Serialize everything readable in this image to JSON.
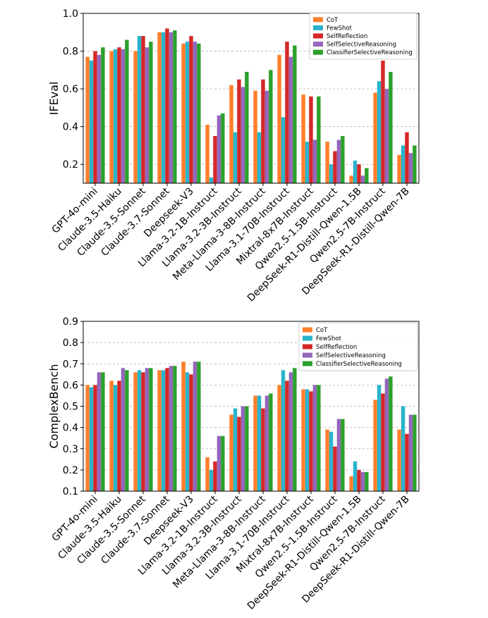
{
  "colors": {
    "CoT": "#ff7f2a",
    "FewShot": "#2ab4cc",
    "SelfReflection": "#d62728",
    "SelfSelectiveReasoning": "#9467bd",
    "ClassifierSelectiveReasoning": "#2ca02c"
  },
  "chart_data": [
    {
      "type": "bar",
      "title": "",
      "xlabel": "",
      "ylabel": "IFEval",
      "ylim": [
        0.1,
        1.0
      ],
      "yticks": [
        "0.2",
        "0.4",
        "0.6",
        "0.8",
        "1.0"
      ],
      "ytick_values": [
        0.2,
        0.4,
        0.6,
        0.8,
        1.0
      ],
      "grid": "horizontal dashed",
      "legend_position": "top-right",
      "categories": [
        "GPT-4o-mini",
        "Claude-3.5-Haiku",
        "Claude-3.5-Sonnet",
        "Claude-3.7-Sonnet",
        "Deepseek-V3",
        "Llama-3.2-1B-Instruct",
        "Llama-3.2-3B-Instruct",
        "Meta-Llama-3-8B-Instruct",
        "Llama-3.1-70B-Instruct",
        "Mixtral-8x7B-Instruct",
        "Qwen2.5-1.5B-Instruct",
        "DeepSeek-R1-Distill-Qwen-1.5B",
        "Qwen2.5-7B-Instruct",
        "DeepSeek-R1-Distill-Qwen-7B"
      ],
      "series": [
        {
          "name": "CoT",
          "values": [
            0.77,
            0.8,
            0.8,
            0.9,
            0.84,
            0.41,
            0.62,
            0.59,
            0.78,
            0.57,
            0.32,
            0.14,
            0.58,
            0.25
          ]
        },
        {
          "name": "FewShot",
          "values": [
            0.75,
            0.81,
            0.88,
            0.9,
            0.85,
            0.13,
            0.37,
            0.37,
            0.45,
            0.32,
            0.2,
            0.22,
            0.64,
            0.3
          ]
        },
        {
          "name": "SelfReflection",
          "values": [
            0.8,
            0.82,
            0.88,
            0.92,
            0.88,
            0.35,
            0.65,
            0.65,
            0.85,
            0.56,
            0.27,
            0.2,
            0.75,
            0.37
          ]
        },
        {
          "name": "SelfSelectiveReasoning",
          "values": [
            0.78,
            0.81,
            0.82,
            0.9,
            0.85,
            0.46,
            0.61,
            0.59,
            0.77,
            0.33,
            0.33,
            0.14,
            0.6,
            0.26
          ]
        },
        {
          "name": "ClassifierSelectiveReasoning",
          "values": [
            0.82,
            0.86,
            0.85,
            0.91,
            0.84,
            0.47,
            0.69,
            0.7,
            0.83,
            0.56,
            0.35,
            0.18,
            0.69,
            0.3
          ]
        }
      ]
    },
    {
      "type": "bar",
      "title": "",
      "xlabel": "",
      "ylabel": "ComplexBench",
      "ylim": [
        0.1,
        0.9
      ],
      "yticks": [
        "0.1",
        "0.2",
        "0.3",
        "0.4",
        "0.5",
        "0.6",
        "0.7",
        "0.8",
        "0.9"
      ],
      "ytick_values": [
        0.1,
        0.2,
        0.3,
        0.4,
        0.5,
        0.6,
        0.7,
        0.8,
        0.9
      ],
      "grid": "horizontal dashed",
      "legend_position": "top-right",
      "categories": [
        "GPT-4o-mini",
        "Claude-3.5-Haiku",
        "Claude-3.5-Sonnet",
        "Claude-3.7-Sonnet",
        "Deepseek-V3",
        "Llama-3.2-1B-Instruct",
        "Llama-3.2-3B-Instruct",
        "Meta-Llama-3-8B-Instruct",
        "Llama-3.1-70B-Instruct",
        "Mixtral-8x7B-Instruct",
        "Qwen2.5-1.5B-Instruct",
        "DeepSeek-R1-Distill-Qwen-1.5B",
        "Qwen2.5-7B-Instruct",
        "DeepSeek-R1-Distill-Qwen-7B"
      ],
      "series": [
        {
          "name": "CoT",
          "values": [
            0.6,
            0.62,
            0.66,
            0.67,
            0.71,
            0.26,
            0.46,
            0.55,
            0.6,
            0.58,
            0.39,
            0.17,
            0.53,
            0.39
          ]
        },
        {
          "name": "FewShot",
          "values": [
            0.59,
            0.6,
            0.67,
            0.67,
            0.66,
            0.2,
            0.49,
            0.55,
            0.67,
            0.58,
            0.38,
            0.24,
            0.6,
            0.5
          ]
        },
        {
          "name": "SelfReflection",
          "values": [
            0.6,
            0.62,
            0.66,
            0.68,
            0.65,
            0.24,
            0.45,
            0.49,
            0.62,
            0.57,
            0.31,
            0.2,
            0.56,
            0.37
          ]
        },
        {
          "name": "SelfSelectiveReasoning",
          "values": [
            0.66,
            0.68,
            0.68,
            0.69,
            0.71,
            0.36,
            0.5,
            0.55,
            0.66,
            0.6,
            0.44,
            0.19,
            0.63,
            0.46
          ]
        },
        {
          "name": "ClassifierSelectiveReasoning",
          "values": [
            0.66,
            0.67,
            0.68,
            0.69,
            0.71,
            0.36,
            0.5,
            0.56,
            0.68,
            0.6,
            0.44,
            0.19,
            0.64,
            0.46
          ]
        }
      ]
    }
  ]
}
